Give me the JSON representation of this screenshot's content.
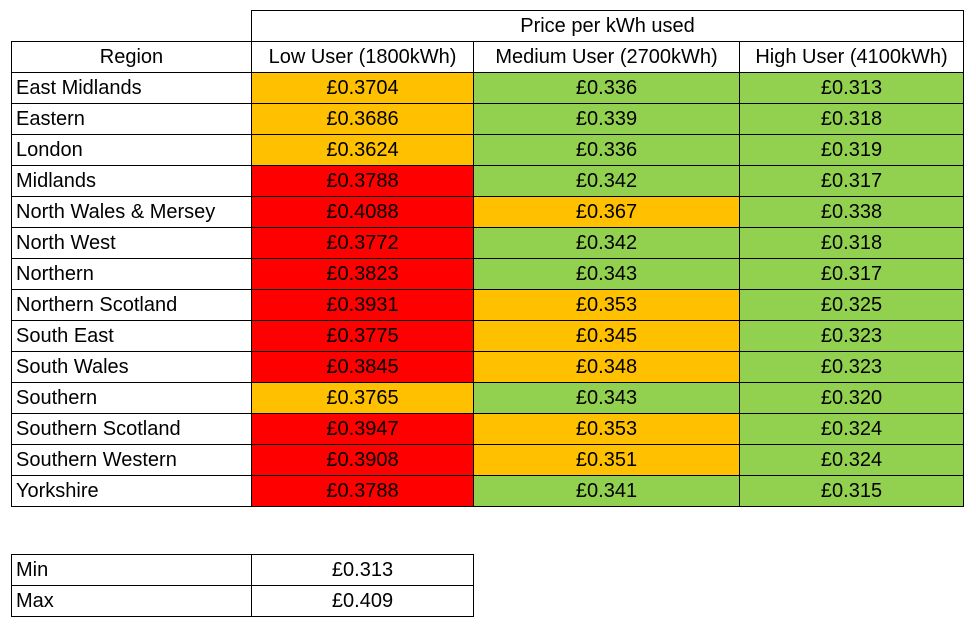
{
  "header": {
    "group_label": "Price per kWh used",
    "columns": [
      "Region",
      "Low User (1800kWh)",
      "Medium User (2700kWh)",
      "High User (4100kWh)"
    ]
  },
  "colors": {
    "red": "#ff0000",
    "amber": "#ffc000",
    "green": "#92d050"
  },
  "rows": [
    {
      "region": "East Midlands",
      "low": "£0.3704",
      "low_color": "amber",
      "medium": "£0.336",
      "medium_color": "green",
      "high": "£0.313",
      "high_color": "green"
    },
    {
      "region": "Eastern",
      "low": "£0.3686",
      "low_color": "amber",
      "medium": "£0.339",
      "medium_color": "green",
      "high": "£0.318",
      "high_color": "green"
    },
    {
      "region": "London",
      "low": "£0.3624",
      "low_color": "amber",
      "medium": "£0.336",
      "medium_color": "green",
      "high": "£0.319",
      "high_color": "green"
    },
    {
      "region": "Midlands",
      "low": "£0.3788",
      "low_color": "red",
      "medium": "£0.342",
      "medium_color": "green",
      "high": "£0.317",
      "high_color": "green"
    },
    {
      "region": "North Wales & Mersey",
      "low": "£0.4088",
      "low_color": "red",
      "medium": "£0.367",
      "medium_color": "amber",
      "high": "£0.338",
      "high_color": "green"
    },
    {
      "region": "North West",
      "low": "£0.3772",
      "low_color": "red",
      "medium": "£0.342",
      "medium_color": "green",
      "high": "£0.318",
      "high_color": "green"
    },
    {
      "region": "Northern",
      "low": "£0.3823",
      "low_color": "red",
      "medium": "£0.343",
      "medium_color": "green",
      "high": "£0.317",
      "high_color": "green"
    },
    {
      "region": "Northern Scotland",
      "low": "£0.3931",
      "low_color": "red",
      "medium": "£0.353",
      "medium_color": "amber",
      "high": "£0.325",
      "high_color": "green"
    },
    {
      "region": "South East",
      "low": "£0.3775",
      "low_color": "red",
      "medium": "£0.345",
      "medium_color": "amber",
      "high": "£0.323",
      "high_color": "green"
    },
    {
      "region": "South Wales",
      "low": "£0.3845",
      "low_color": "red",
      "medium": "£0.348",
      "medium_color": "amber",
      "high": "£0.323",
      "high_color": "green"
    },
    {
      "region": "Southern",
      "low": "£0.3765",
      "low_color": "amber",
      "medium": "£0.343",
      "medium_color": "green",
      "high": "£0.320",
      "high_color": "green"
    },
    {
      "region": "Southern Scotland",
      "low": "£0.3947",
      "low_color": "red",
      "medium": "£0.353",
      "medium_color": "amber",
      "high": "£0.324",
      "high_color": "green"
    },
    {
      "region": "Southern Western",
      "low": "£0.3908",
      "low_color": "red",
      "medium": "£0.351",
      "medium_color": "amber",
      "high": "£0.324",
      "high_color": "green"
    },
    {
      "region": "Yorkshire",
      "low": "£0.3788",
      "low_color": "red",
      "medium": "£0.341",
      "medium_color": "green",
      "high": "£0.315",
      "high_color": "green"
    }
  ],
  "summary": [
    {
      "label": "Min",
      "value": "£0.313"
    },
    {
      "label": "Max",
      "value": "£0.409"
    }
  ]
}
